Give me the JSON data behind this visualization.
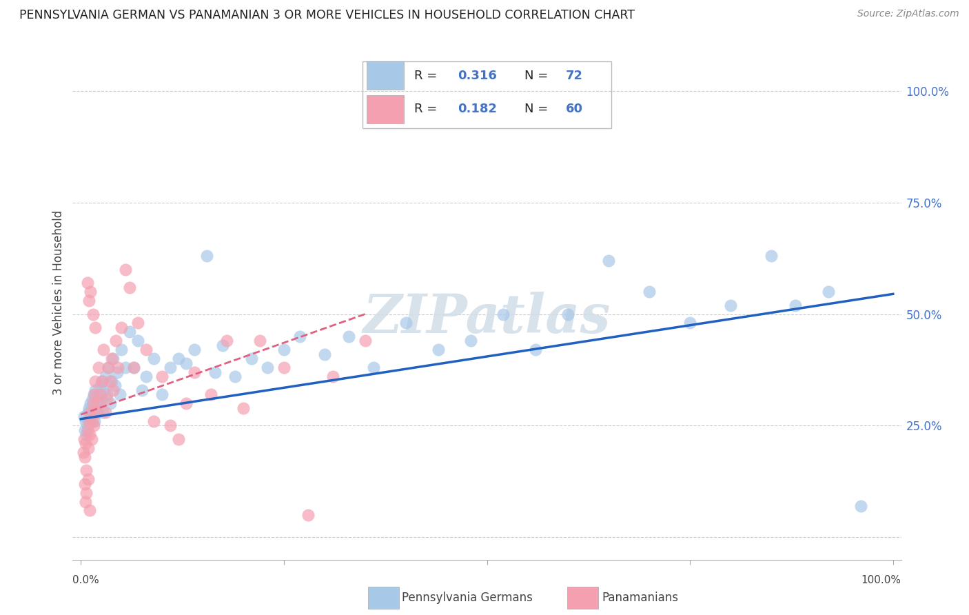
{
  "title": "PENNSYLVANIA GERMAN VS PANAMANIAN 3 OR MORE VEHICLES IN HOUSEHOLD CORRELATION CHART",
  "source": "Source: ZipAtlas.com",
  "ylabel": "3 or more Vehicles in Household",
  "legend_blue_label": "Pennsylvania Germans",
  "legend_pink_label": "Panamanians",
  "blue_color": "#a8c8e8",
  "pink_color": "#f4a0b0",
  "line_blue_color": "#2060c0",
  "line_pink_color": "#e06080",
  "blue_r": "R = 0.316",
  "blue_n": "N = 72",
  "pink_r": "R = 0.182",
  "pink_n": "N = 60",
  "blue_scatter_x": [
    0.004,
    0.005,
    0.006,
    0.007,
    0.008,
    0.009,
    0.01,
    0.011,
    0.012,
    0.013,
    0.014,
    0.015,
    0.016,
    0.017,
    0.018,
    0.019,
    0.02,
    0.021,
    0.022,
    0.023,
    0.024,
    0.025,
    0.026,
    0.027,
    0.028,
    0.03,
    0.032,
    0.034,
    0.036,
    0.038,
    0.04,
    0.042,
    0.045,
    0.048,
    0.05,
    0.055,
    0.06,
    0.065,
    0.07,
    0.075,
    0.08,
    0.09,
    0.1,
    0.11,
    0.12,
    0.13,
    0.14,
    0.155,
    0.165,
    0.175,
    0.19,
    0.21,
    0.23,
    0.25,
    0.27,
    0.3,
    0.33,
    0.36,
    0.4,
    0.44,
    0.48,
    0.52,
    0.56,
    0.6,
    0.65,
    0.7,
    0.75,
    0.8,
    0.85,
    0.88,
    0.92,
    0.96
  ],
  "blue_scatter_y": [
    0.27,
    0.24,
    0.26,
    0.23,
    0.25,
    0.28,
    0.29,
    0.26,
    0.3,
    0.27,
    0.31,
    0.28,
    0.32,
    0.26,
    0.33,
    0.29,
    0.3,
    0.28,
    0.32,
    0.3,
    0.34,
    0.31,
    0.35,
    0.28,
    0.33,
    0.36,
    0.32,
    0.38,
    0.3,
    0.35,
    0.4,
    0.34,
    0.37,
    0.32,
    0.42,
    0.38,
    0.46,
    0.38,
    0.44,
    0.33,
    0.36,
    0.4,
    0.32,
    0.38,
    0.4,
    0.39,
    0.42,
    0.63,
    0.37,
    0.43,
    0.36,
    0.4,
    0.38,
    0.42,
    0.45,
    0.41,
    0.45,
    0.38,
    0.48,
    0.42,
    0.44,
    0.5,
    0.42,
    0.5,
    0.62,
    0.55,
    0.48,
    0.52,
    0.63,
    0.52,
    0.55,
    0.07
  ],
  "pink_scatter_x": [
    0.003,
    0.004,
    0.005,
    0.006,
    0.007,
    0.008,
    0.009,
    0.01,
    0.011,
    0.012,
    0.013,
    0.014,
    0.015,
    0.016,
    0.017,
    0.018,
    0.019,
    0.02,
    0.022,
    0.024,
    0.026,
    0.028,
    0.03,
    0.032,
    0.034,
    0.036,
    0.038,
    0.04,
    0.043,
    0.046,
    0.05,
    0.055,
    0.06,
    0.065,
    0.07,
    0.08,
    0.09,
    0.1,
    0.11,
    0.12,
    0.13,
    0.14,
    0.16,
    0.18,
    0.2,
    0.22,
    0.25,
    0.28,
    0.31,
    0.35,
    0.008,
    0.01,
    0.012,
    0.015,
    0.018,
    0.005,
    0.007,
    0.009,
    0.006,
    0.011
  ],
  "pink_scatter_y": [
    0.19,
    0.22,
    0.18,
    0.21,
    0.15,
    0.24,
    0.2,
    0.26,
    0.23,
    0.28,
    0.22,
    0.26,
    0.3,
    0.25,
    0.32,
    0.35,
    0.28,
    0.3,
    0.38,
    0.32,
    0.35,
    0.42,
    0.28,
    0.31,
    0.38,
    0.35,
    0.4,
    0.33,
    0.44,
    0.38,
    0.47,
    0.6,
    0.56,
    0.38,
    0.48,
    0.42,
    0.26,
    0.36,
    0.25,
    0.22,
    0.3,
    0.37,
    0.32,
    0.44,
    0.29,
    0.44,
    0.38,
    0.05,
    0.36,
    0.44,
    0.57,
    0.53,
    0.55,
    0.5,
    0.47,
    0.12,
    0.1,
    0.13,
    0.08,
    0.06
  ],
  "blue_line_x": [
    0.0,
    1.0
  ],
  "blue_line_y": [
    0.265,
    0.545
  ],
  "pink_line_x": [
    0.0,
    0.35
  ],
  "pink_line_y": [
    0.275,
    0.5
  ],
  "right_ytick_values": [
    0.0,
    0.25,
    0.5,
    0.75,
    1.0
  ],
  "right_ytick_labels": [
    "",
    "25.0%",
    "50.0%",
    "75.0%",
    "100.0%"
  ],
  "xlim": [
    0.0,
    1.0
  ],
  "ylim": [
    -0.05,
    1.1
  ]
}
